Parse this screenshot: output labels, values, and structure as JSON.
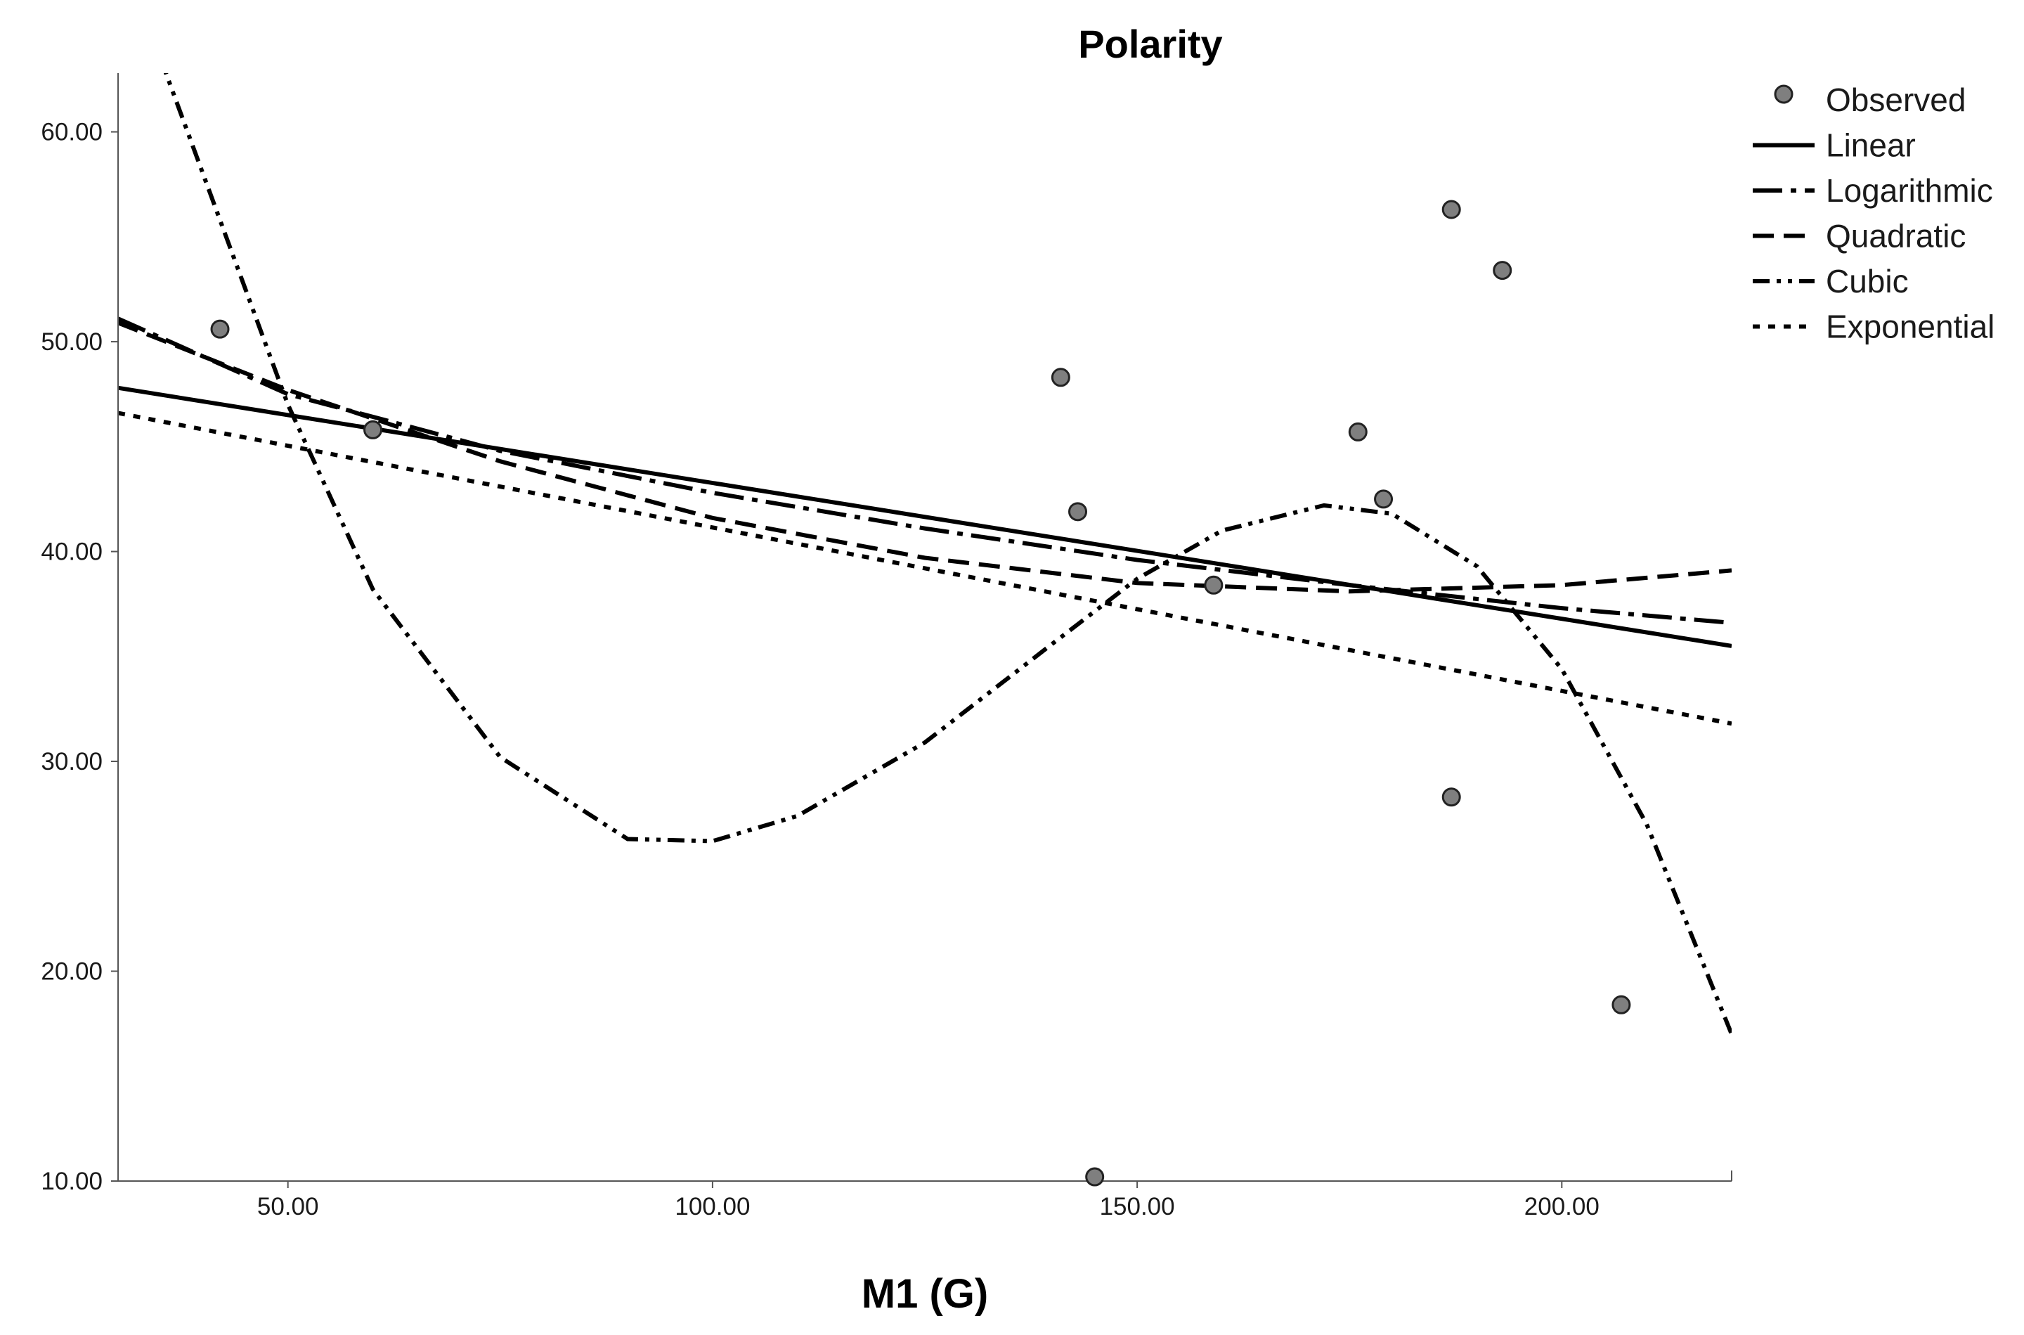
{
  "chart_data": {
    "type": "scatter",
    "title": "Polarity",
    "xlabel": "M1 (G)",
    "ylabel": "",
    "xlim": [
      30,
      220
    ],
    "ylim": [
      10,
      62.8
    ],
    "x_ticks": [
      "50.00",
      "100.00",
      "150.00",
      "200.00"
    ],
    "y_ticks": [
      "10.00",
      "20.00",
      "30.00",
      "40.00",
      "50.00",
      "60.00"
    ],
    "observed": {
      "name": "Observed",
      "x": [
        42,
        60,
        141,
        143,
        145,
        159,
        176,
        179,
        187,
        187,
        193,
        207
      ],
      "y": [
        50.6,
        45.8,
        48.3,
        41.9,
        10.2,
        38.4,
        45.7,
        42.5,
        56.3,
        28.3,
        53.4,
        18.4
      ]
    },
    "series": [
      {
        "name": "Linear",
        "style": "solid",
        "x": [
          30,
          220
        ],
        "y": [
          47.8,
          35.5
        ]
      },
      {
        "name": "Logarithmic",
        "style": "long-dash-dot",
        "x": [
          30,
          50,
          75,
          100,
          125,
          150,
          175,
          200,
          220
        ],
        "y": [
          51.1,
          47.5,
          44.8,
          42.8,
          41.1,
          39.6,
          38.4,
          37.3,
          36.6
        ]
      },
      {
        "name": "Quadratic",
        "style": "dashed",
        "x": [
          30,
          50,
          75,
          100,
          125,
          150,
          175,
          200,
          220
        ],
        "y": [
          50.9,
          47.7,
          44.3,
          41.6,
          39.7,
          38.5,
          38.1,
          38.4,
          39.1
        ]
      },
      {
        "name": "Cubic",
        "style": "dash-dot-dot",
        "x": [
          35,
          50,
          60,
          75,
          90,
          100,
          110,
          125,
          140,
          150,
          160,
          172,
          180,
          190,
          200,
          210,
          220
        ],
        "y": [
          63.5,
          47.0,
          38.2,
          30.2,
          26.3,
          26.2,
          27.4,
          30.9,
          35.6,
          38.7,
          41.0,
          42.2,
          41.8,
          39.3,
          34.4,
          27.0,
          17.0
        ]
      },
      {
        "name": "Exponential",
        "style": "dotted",
        "x": [
          30,
          220
        ],
        "y": [
          46.6,
          31.8
        ]
      }
    ],
    "legend": {
      "position": "top-right",
      "entries": [
        "Observed",
        "Linear",
        "Logarithmic",
        "Quadratic",
        "Cubic",
        "Exponential"
      ]
    },
    "grid": false
  }
}
